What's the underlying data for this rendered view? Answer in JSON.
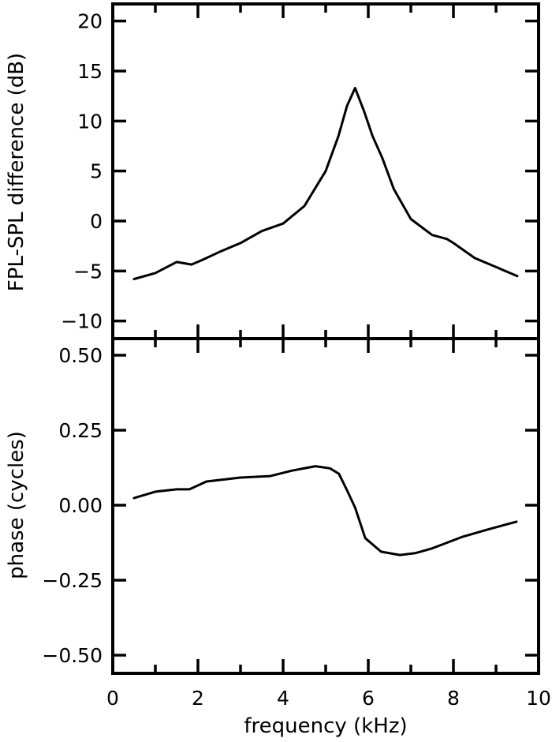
{
  "chart_data": [
    {
      "type": "line",
      "panel": "top",
      "title": "",
      "xlabel": "",
      "ylabel": "FPL-SPL difference (dB)",
      "xlim": [
        0,
        10
      ],
      "ylim": [
        -11.5,
        21.5
      ],
      "yticks": [
        20,
        15,
        10,
        5,
        0,
        -5,
        -10
      ],
      "ytick_labels": [
        "20",
        "15",
        "10",
        "5",
        "0",
        "−5",
        "−10"
      ],
      "grid": false,
      "series": [
        {
          "name": "FPL-SPL difference",
          "x": [
            0.5,
            1.0,
            1.5,
            1.85,
            2.1,
            2.5,
            3.0,
            3.5,
            4.0,
            4.5,
            5.0,
            5.3,
            5.5,
            5.69,
            5.9,
            6.1,
            6.33,
            6.6,
            7.0,
            7.5,
            7.85,
            8.0,
            8.5,
            9.0,
            9.5
          ],
          "y": [
            -5.8,
            -5.2,
            -4.1,
            -4.35,
            -3.9,
            -3.1,
            -2.2,
            -1.0,
            -0.25,
            1.5,
            5.0,
            8.5,
            11.5,
            13.3,
            11.0,
            8.5,
            6.3,
            3.2,
            0.2,
            -1.4,
            -1.8,
            -2.2,
            -3.7,
            -4.6,
            -5.5
          ]
        }
      ]
    },
    {
      "type": "line",
      "panel": "bottom",
      "title": "",
      "xlabel": "frequency (kHz)",
      "ylabel": "phase (cycles)",
      "xlim": [
        0,
        10
      ],
      "ylim": [
        -0.555,
        0.555
      ],
      "xticks": [
        0,
        2,
        4,
        6,
        8,
        10
      ],
      "xtick_labels": [
        "0",
        "2",
        "4",
        "6",
        "8",
        "10"
      ],
      "yticks": [
        0.5,
        0.25,
        0.0,
        -0.25,
        -0.5
      ],
      "ytick_labels": [
        "0.50",
        "0.25",
        "0.00",
        "−0.25",
        "−0.50"
      ],
      "grid": false,
      "series": [
        {
          "name": "phase",
          "x": [
            0.5,
            1.0,
            1.5,
            1.8,
            2.2,
            3.0,
            3.7,
            4.2,
            4.76,
            5.1,
            5.31,
            5.5,
            5.69,
            5.93,
            6.3,
            6.74,
            7.1,
            7.48,
            8.22,
            8.83,
            9.48
          ],
          "y": [
            0.024,
            0.045,
            0.053,
            0.053,
            0.079,
            0.092,
            0.097,
            0.115,
            0.13,
            0.123,
            0.105,
            0.05,
            -0.008,
            -0.11,
            -0.155,
            -0.166,
            -0.16,
            -0.145,
            -0.105,
            -0.08,
            -0.055
          ]
        }
      ]
    }
  ]
}
